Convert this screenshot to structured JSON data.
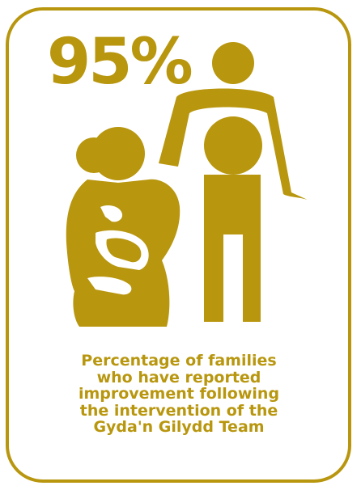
{
  "infographic": {
    "stat_value": "95%",
    "caption_lines": [
      "Percentage of families",
      "who have reported",
      "improvement following",
      "the intervention of the",
      "Gyda'n Gilydd Team"
    ],
    "illustration_icon": "parent-and-children-icon"
  },
  "colors": {
    "accent": "#b8960e",
    "background": "#ffffff"
  }
}
